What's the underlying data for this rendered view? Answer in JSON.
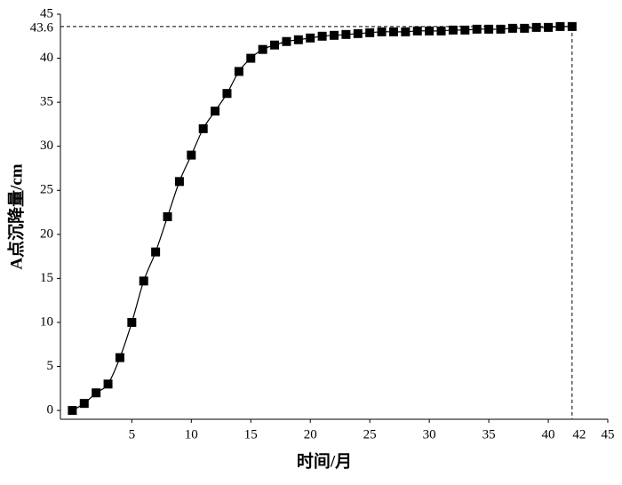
{
  "chart_data": {
    "type": "line",
    "x_label": "时间/月",
    "y_label": "A点沉降量/cm",
    "x": [
      0,
      1,
      2,
      3,
      4,
      5,
      6,
      7,
      8,
      9,
      10,
      11,
      12,
      13,
      14,
      15,
      16,
      17,
      18,
      19,
      20,
      21,
      22,
      23,
      24,
      25,
      26,
      27,
      28,
      29,
      30,
      31,
      32,
      33,
      34,
      35,
      36,
      37,
      38,
      39,
      40,
      41,
      42
    ],
    "series": [
      {
        "color": "#000000",
        "values": [
          0,
          0.8,
          2,
          3,
          6,
          10,
          14.7,
          18,
          22,
          26,
          29,
          32,
          34,
          36,
          38.5,
          40,
          41,
          41.5,
          41.9,
          42.1,
          42.3,
          42.5,
          42.6,
          42.7,
          42.8,
          42.9,
          43.0,
          43.0,
          43.0,
          43.1,
          43.1,
          43.1,
          43.2,
          43.2,
          43.3,
          43.3,
          43.3,
          43.4,
          43.4,
          43.5,
          43.5,
          43.6,
          43.6
        ]
      }
    ],
    "xlim": [
      -1,
      45
    ],
    "xticks": [
      5,
      10,
      15,
      20,
      25,
      30,
      35,
      40,
      45
    ],
    "ylim": [
      -1,
      45
    ],
    "yticks": [
      0,
      5,
      10,
      15,
      20,
      25,
      30,
      35,
      40,
      45
    ],
    "reference": {
      "x": 42,
      "y": 43.6
    }
  }
}
